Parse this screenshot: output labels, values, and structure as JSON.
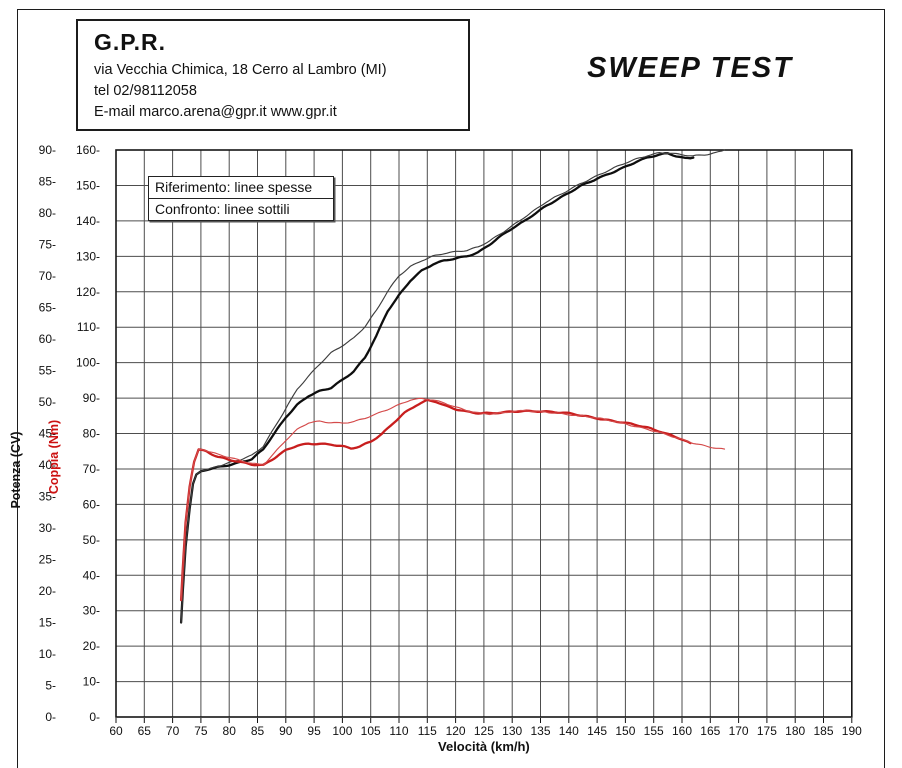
{
  "header": {
    "company": "G.P.R.",
    "address": "via Vecchia Chimica, 18 Cerro al Lambro (MI)",
    "phone": "tel 02/98112058",
    "email_line": "E-mail marco.arena@gpr.it  www.gpr.it"
  },
  "title": "SWEEP TEST",
  "legend": {
    "reference": "Riferimento: linee spesse",
    "comparison": "Confronto: linee sottili"
  },
  "chart_data": {
    "type": "line",
    "title": "SWEEP TEST",
    "xlabel": "Velocità (km/h)",
    "x_range": [
      60,
      190
    ],
    "x_step": 5,
    "grid": true,
    "left_axis": {
      "label": "Potenza (CV)",
      "range": [
        0,
        90
      ],
      "step": 5,
      "color": "#111111"
    },
    "right_axis_inner": {
      "label": "Coppia (Nm)",
      "range": [
        0,
        160
      ],
      "step": 10,
      "color": "#cc1111"
    },
    "series": [
      {
        "name": "Potenza Riferimento (linea spessa)",
        "axis": "power",
        "style": "thick",
        "color": "#0e0e0e",
        "points": [
          [
            71.5,
            15
          ],
          [
            71.8,
            20
          ],
          [
            72.3,
            27
          ],
          [
            73,
            33
          ],
          [
            73.6,
            37
          ],
          [
            74.2,
            38.5
          ],
          [
            75,
            39
          ],
          [
            76.5,
            39.3
          ],
          [
            78,
            39.6
          ],
          [
            80,
            40
          ],
          [
            82,
            40.5
          ],
          [
            84,
            41
          ],
          [
            86,
            42.5
          ],
          [
            88,
            45
          ],
          [
            90,
            47.5
          ],
          [
            92,
            49.5
          ],
          [
            94,
            51
          ],
          [
            96,
            51.8
          ],
          [
            98,
            52.3
          ],
          [
            100,
            53.5
          ],
          [
            102,
            54.8
          ],
          [
            104,
            57
          ],
          [
            106,
            60.5
          ],
          [
            108,
            64.5
          ],
          [
            110,
            67
          ],
          [
            112,
            69.3
          ],
          [
            114,
            70.8
          ],
          [
            116,
            71.8
          ],
          [
            118,
            72.4
          ],
          [
            120,
            72.8
          ],
          [
            122,
            73.2
          ],
          [
            124,
            73.8
          ],
          [
            126,
            75
          ],
          [
            128,
            76.3
          ],
          [
            130,
            77.5
          ],
          [
            132,
            78.6
          ],
          [
            134,
            79.9
          ],
          [
            136,
            81.2
          ],
          [
            138,
            82.2
          ],
          [
            140,
            83.2
          ],
          [
            142,
            84.2
          ],
          [
            144,
            85
          ],
          [
            146,
            85.8
          ],
          [
            148,
            86.6
          ],
          [
            150,
            87.4
          ],
          [
            152,
            88.2
          ],
          [
            154,
            88.8
          ],
          [
            156,
            89.2
          ],
          [
            157.5,
            89.4
          ],
          [
            159,
            89
          ],
          [
            160.5,
            88.7
          ],
          [
            162,
            88.8
          ]
        ]
      },
      {
        "name": "Potenza Confronto (linea sottile)",
        "axis": "power",
        "style": "thin",
        "color": "#3d3d3d",
        "points": [
          [
            71.5,
            15
          ],
          [
            71.8,
            20
          ],
          [
            72.3,
            27
          ],
          [
            73,
            33
          ],
          [
            73.6,
            37
          ],
          [
            74.2,
            38.5
          ],
          [
            75,
            39
          ],
          [
            76.5,
            39.4
          ],
          [
            78,
            39.8
          ],
          [
            80,
            40.3
          ],
          [
            82,
            40.8
          ],
          [
            84,
            41.5
          ],
          [
            86,
            43
          ],
          [
            88,
            46
          ],
          [
            90,
            49
          ],
          [
            92,
            52
          ],
          [
            94,
            54
          ],
          [
            96,
            56
          ],
          [
            98,
            57.8
          ],
          [
            100,
            59
          ],
          [
            102,
            60.2
          ],
          [
            104,
            62
          ],
          [
            106,
            64.5
          ],
          [
            108,
            67.5
          ],
          [
            110,
            70
          ],
          [
            112,
            71.5
          ],
          [
            114,
            72.5
          ],
          [
            116,
            73.2
          ],
          [
            118,
            73.6
          ],
          [
            120,
            73.8
          ],
          [
            122,
            74
          ],
          [
            124,
            74.6
          ],
          [
            126,
            75.6
          ],
          [
            128,
            76.8
          ],
          [
            130,
            78
          ],
          [
            132,
            79.2
          ],
          [
            134,
            80.4
          ],
          [
            136,
            81.7
          ],
          [
            138,
            82.7
          ],
          [
            140,
            83.7
          ],
          [
            142,
            84.7
          ],
          [
            144,
            85.5
          ],
          [
            146,
            86.3
          ],
          [
            148,
            87.1
          ],
          [
            150,
            87.9
          ],
          [
            152,
            88.6
          ],
          [
            154,
            89.2
          ],
          [
            156,
            89.6
          ],
          [
            158,
            89.5
          ],
          [
            160,
            89.2
          ],
          [
            162,
            89
          ],
          [
            164,
            89.2
          ],
          [
            166,
            89.6
          ],
          [
            167.5,
            90
          ]
        ]
      },
      {
        "name": "Coppia Riferimento (linea spessa)",
        "axis": "torque",
        "style": "thick",
        "color": "#c81e1e",
        "points": [
          [
            71.5,
            33
          ],
          [
            71.8,
            42
          ],
          [
            72.3,
            55
          ],
          [
            73,
            65
          ],
          [
            73.8,
            72
          ],
          [
            74.6,
            75.5
          ],
          [
            75.5,
            75.3
          ],
          [
            76.5,
            74.5
          ],
          [
            78,
            73.5
          ],
          [
            80,
            72.7
          ],
          [
            82,
            72
          ],
          [
            84,
            71.2
          ],
          [
            86,
            70.9
          ],
          [
            88,
            73
          ],
          [
            90,
            75.3
          ],
          [
            92,
            76.7
          ],
          [
            94,
            77.2
          ],
          [
            96,
            77.1
          ],
          [
            98,
            76.8
          ],
          [
            100,
            76.3
          ],
          [
            101.5,
            75.7
          ],
          [
            103,
            76.3
          ],
          [
            105,
            77.8
          ],
          [
            107,
            80
          ],
          [
            109,
            83
          ],
          [
            111,
            85.8
          ],
          [
            113,
            87.8
          ],
          [
            115,
            89.3
          ],
          [
            116.5,
            89
          ],
          [
            118,
            88
          ],
          [
            120,
            87
          ],
          [
            122,
            86.2
          ],
          [
            124,
            85.7
          ],
          [
            126,
            85.6
          ],
          [
            128,
            85.8
          ],
          [
            130,
            86.2
          ],
          [
            132,
            86.4
          ],
          [
            134,
            86.4
          ],
          [
            136,
            86.2
          ],
          [
            138,
            85.9
          ],
          [
            140,
            85.6
          ],
          [
            142,
            85.1
          ],
          [
            144,
            84.6
          ],
          [
            146,
            84.1
          ],
          [
            148,
            83.6
          ],
          [
            150,
            83
          ],
          [
            152,
            82.3
          ],
          [
            154,
            81.5
          ],
          [
            156,
            80.6
          ],
          [
            158,
            79.6
          ],
          [
            160,
            78.5
          ],
          [
            161.5,
            77.3
          ]
        ]
      },
      {
        "name": "Coppia Confronto (linea sottile)",
        "axis": "torque",
        "style": "thin",
        "color": "#d44a4a",
        "points": [
          [
            71.5,
            33
          ],
          [
            71.8,
            42
          ],
          [
            72.3,
            55
          ],
          [
            73,
            65
          ],
          [
            73.8,
            72
          ],
          [
            74.6,
            75.5
          ],
          [
            75.5,
            75.4
          ],
          [
            76.5,
            74.8
          ],
          [
            78,
            74
          ],
          [
            80,
            73.2
          ],
          [
            82,
            72.4
          ],
          [
            84,
            71.7
          ],
          [
            86,
            71.2
          ],
          [
            88,
            74.5
          ],
          [
            90,
            78
          ],
          [
            92,
            81
          ],
          [
            94,
            83
          ],
          [
            96,
            83.5
          ],
          [
            98,
            83.2
          ],
          [
            100,
            83
          ],
          [
            102,
            83.3
          ],
          [
            104,
            84.2
          ],
          [
            106,
            85.4
          ],
          [
            108,
            86.8
          ],
          [
            110,
            88.2
          ],
          [
            112,
            89.6
          ],
          [
            114,
            89.9
          ],
          [
            116,
            89.4
          ],
          [
            118,
            88.5
          ],
          [
            120,
            87.4
          ],
          [
            122,
            86.5
          ],
          [
            124,
            85.9
          ],
          [
            126,
            85.6
          ],
          [
            128,
            85.8
          ],
          [
            130,
            86.1
          ],
          [
            132,
            86.3
          ],
          [
            134,
            86.3
          ],
          [
            136,
            86.1
          ],
          [
            138,
            85.8
          ],
          [
            140,
            85.4
          ],
          [
            142,
            85
          ],
          [
            144,
            84.5
          ],
          [
            146,
            84
          ],
          [
            148,
            83.4
          ],
          [
            150,
            82.8
          ],
          [
            152,
            82
          ],
          [
            154,
            81.2
          ],
          [
            156,
            80.2
          ],
          [
            158,
            79.2
          ],
          [
            160,
            78.2
          ],
          [
            162,
            77.3
          ],
          [
            164,
            76.6
          ],
          [
            166,
            76
          ],
          [
            167.5,
            75.6
          ]
        ]
      }
    ],
    "layout": {
      "grid_color": "#4d4d4d",
      "plot_border_color": "#161616"
    }
  }
}
